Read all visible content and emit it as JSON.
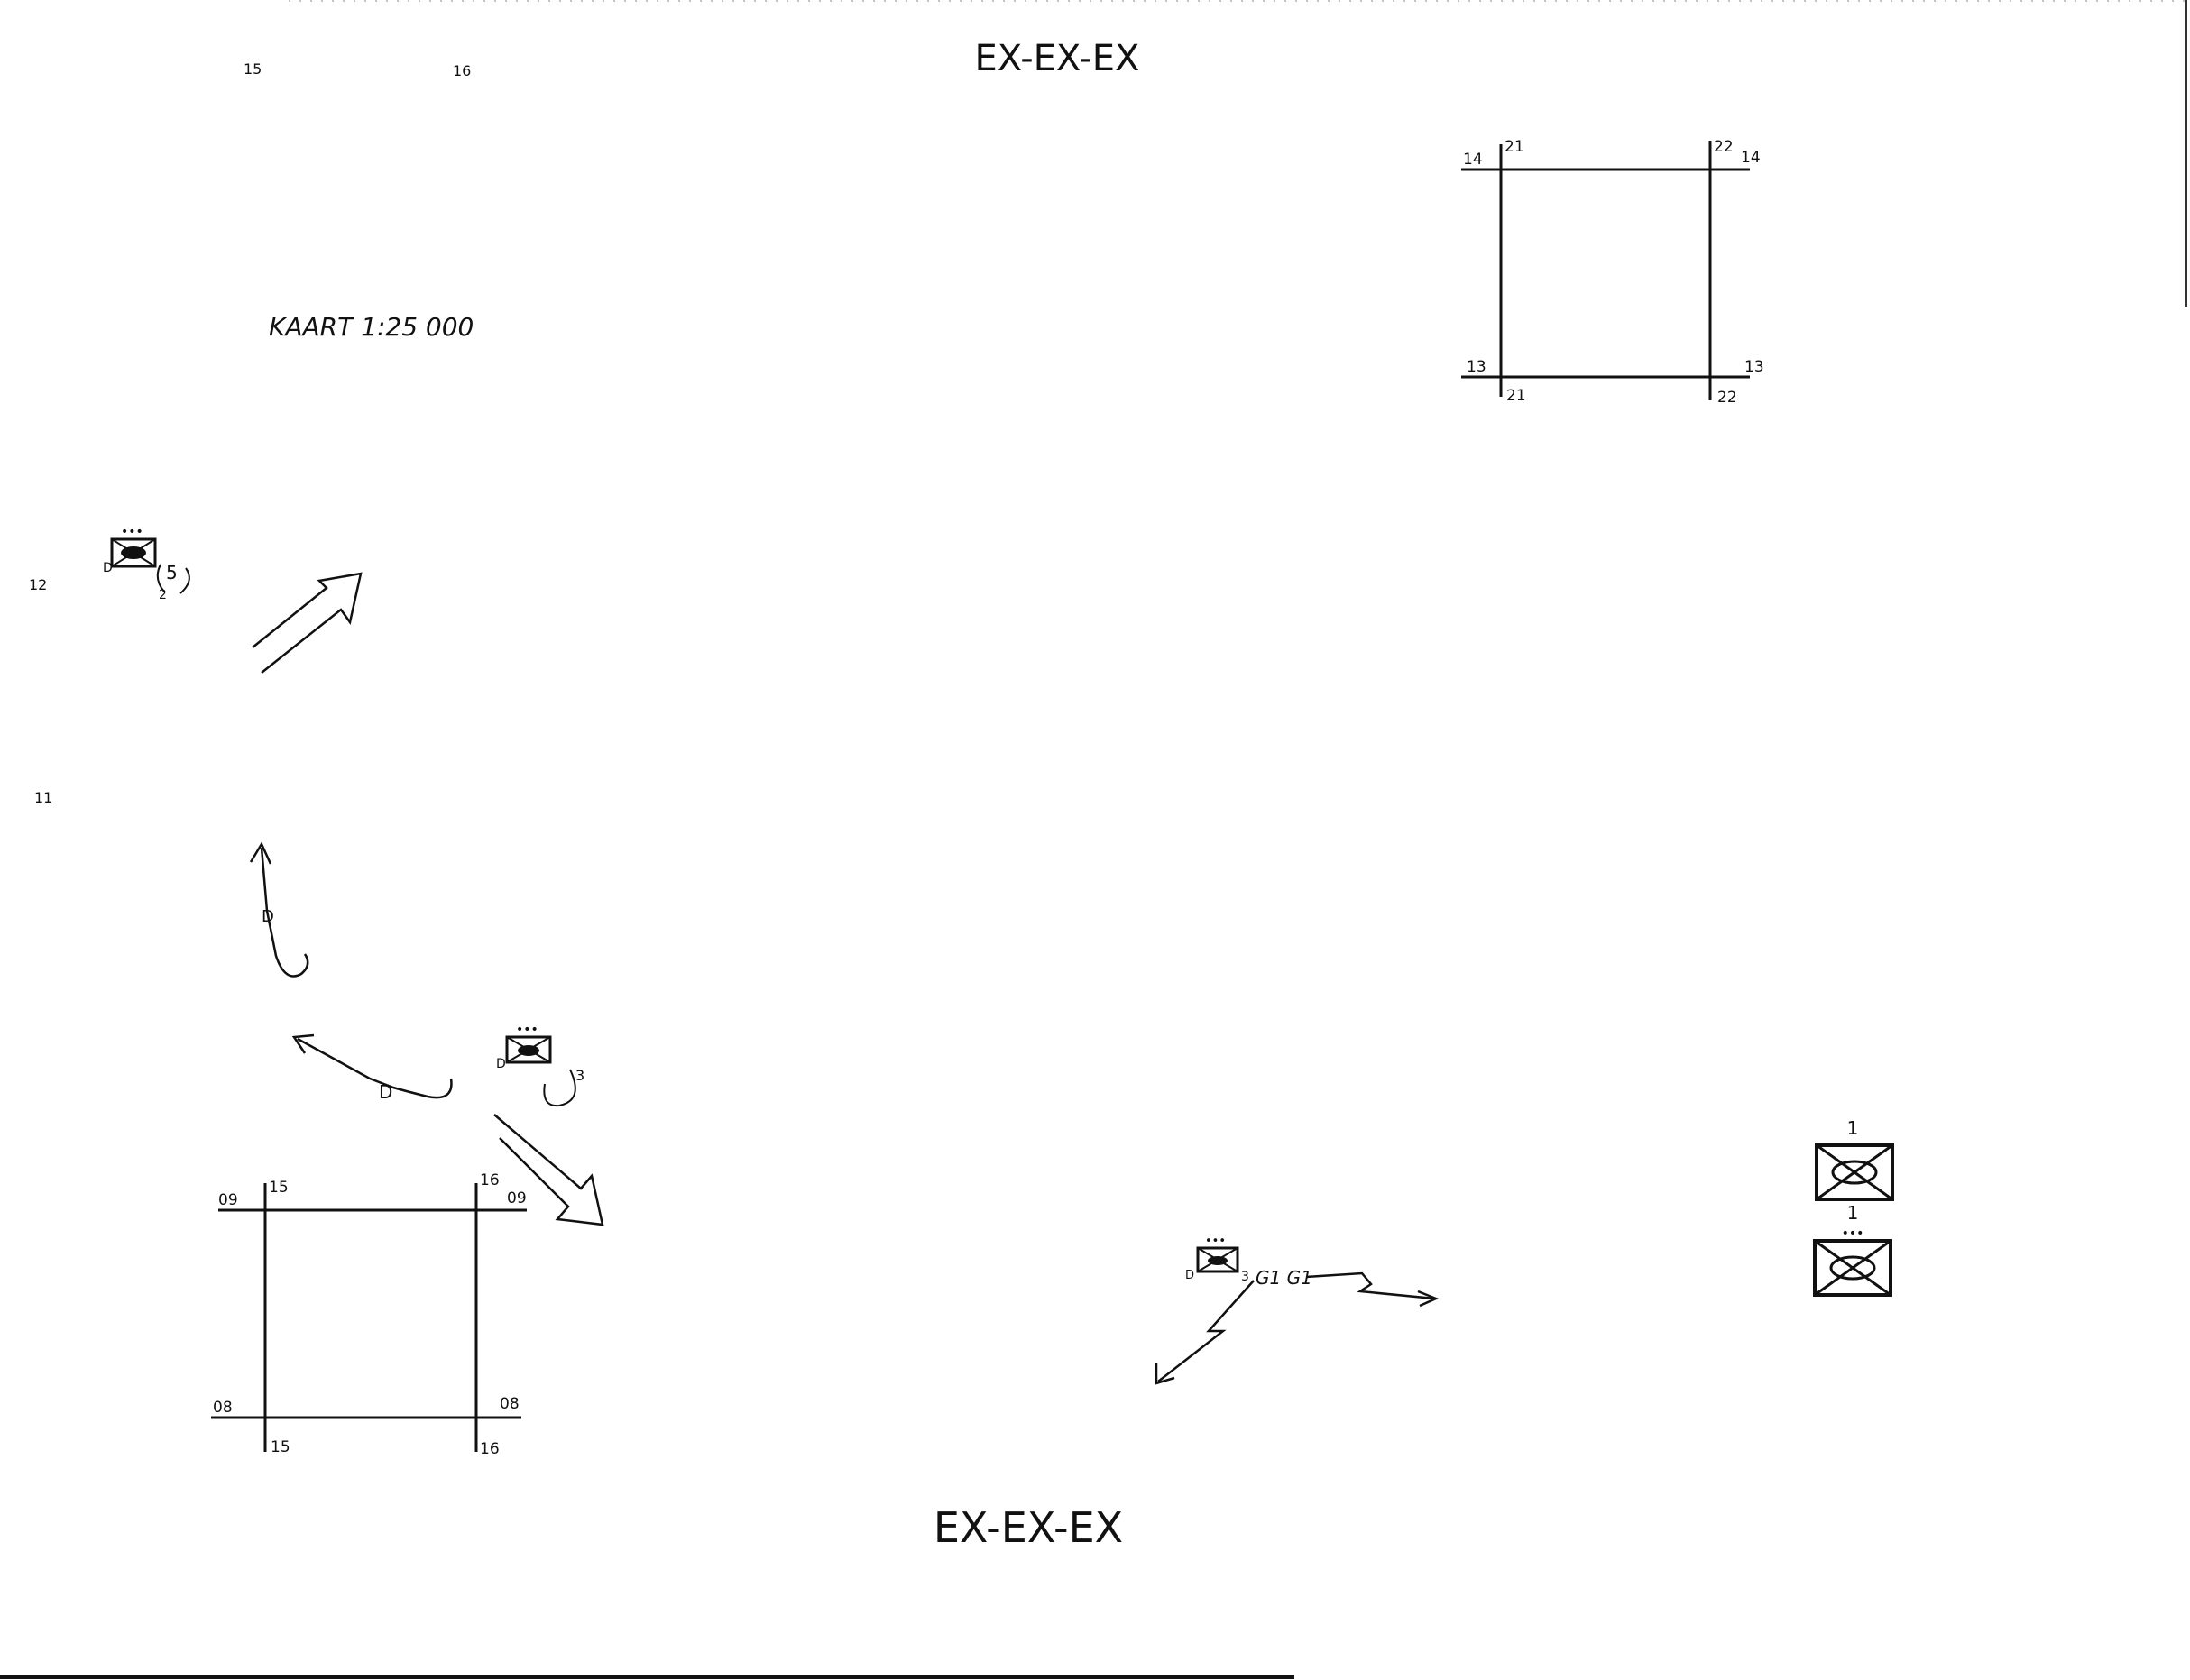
{
  "header": {
    "title_top": "EX-EX-EX"
  },
  "footer": {
    "title_bottom": "EX-EX-EX"
  },
  "map": {
    "scale_label": "KAART 1:25 000",
    "top_margin_labels": [
      "15",
      "16"
    ],
    "left_margin_labels": [
      "12",
      "11"
    ],
    "grid_square_bottom_left": {
      "corner_labels": {
        "top_left_col": "15",
        "top_right_col": "16",
        "left_row_top": "09",
        "right_row_top": "09",
        "left_row_bottom": "08",
        "right_row_bottom": "08",
        "bottom_left_col": "15",
        "bottom_right_col": "16"
      }
    },
    "grid_square_top_right": {
      "corner_labels": {
        "top_left_col": "21",
        "top_right_col": "22",
        "left_row_top": "14",
        "right_row_top": "14",
        "left_row_bottom": "13",
        "right_row_bottom": "13",
        "bottom_left_col": "21",
        "bottom_right_col": "22"
      }
    },
    "units": [
      {
        "id": "unit-a",
        "side_label": "D",
        "number": "5",
        "dots": "•••",
        "sub": "2"
      },
      {
        "id": "unit-b",
        "side_label": "D",
        "number": "3",
        "dots": "•••"
      },
      {
        "id": "unit-c",
        "side_label": "D",
        "number": "3",
        "dots": "•••",
        "code": "G1 G1"
      }
    ],
    "arrow_labels": [
      "D",
      "D"
    ],
    "legend_symbols": [
      {
        "label": "1"
      },
      {
        "label": "1",
        "dots": "•••"
      }
    ]
  }
}
